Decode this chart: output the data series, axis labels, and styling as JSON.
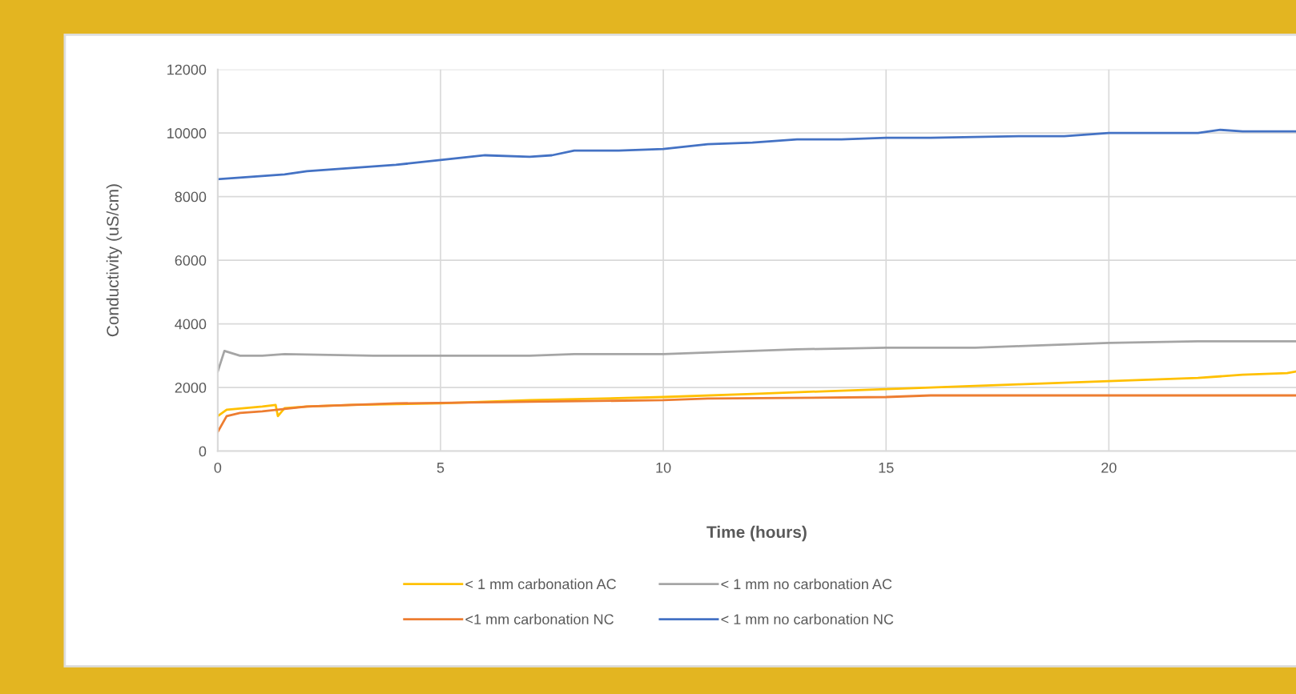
{
  "chart_data": {
    "type": "line",
    "xlabel": "Time (hours)",
    "ylabel": "Conductivity (uS/cm)",
    "xlim": [
      0,
      24.2
    ],
    "xticks": [
      0,
      5,
      10,
      15,
      20
    ],
    "ylim": [
      0,
      12000
    ],
    "yticks": [
      0,
      2000,
      4000,
      6000,
      8000,
      10000,
      12000
    ],
    "grid": true,
    "legend": "bottom",
    "marker": "none",
    "line_style": "solid",
    "series": [
      {
        "name": "< 1 mm carbonation AC",
        "color": "#ffc000",
        "x": [
          0,
          0.2,
          1,
          1.3,
          1.35,
          1.5,
          2,
          3,
          5,
          7,
          10,
          12,
          14,
          16,
          18,
          20,
          22,
          23,
          24,
          24.2
        ],
        "values": [
          1100,
          1300,
          1400,
          1450,
          1100,
          1350,
          1400,
          1450,
          1500,
          1600,
          1700,
          1800,
          1900,
          2000,
          2100,
          2200,
          2300,
          2400,
          2450,
          2500
        ]
      },
      {
        "name": "<1 mm carbonation NC",
        "color": "#ed7d31",
        "x": [
          0,
          0.2,
          0.5,
          1,
          2,
          4,
          7,
          10,
          11,
          15,
          16,
          20,
          24.2
        ],
        "values": [
          600,
          1100,
          1200,
          1250,
          1400,
          1500,
          1550,
          1600,
          1650,
          1700,
          1750,
          1750,
          1750
        ]
      },
      {
        "name": "< 1 mm no carbonation AC",
        "color": "#a5a5a5",
        "x": [
          0,
          0.15,
          0.5,
          1,
          1.5,
          3.5,
          5,
          7,
          8,
          10,
          11,
          12,
          13,
          15,
          17,
          18,
          19,
          20,
          22,
          24.2
        ],
        "values": [
          2500,
          3150,
          3000,
          3000,
          3050,
          3000,
          3000,
          3000,
          3050,
          3050,
          3100,
          3150,
          3200,
          3250,
          3250,
          3300,
          3350,
          3400,
          3450,
          3450
        ]
      },
      {
        "name": "< 1 mm no carbonation NC",
        "color": "#4472c4",
        "x": [
          0,
          0.5,
          1.5,
          2,
          3,
          4,
          5,
          6,
          7,
          7.5,
          8,
          9,
          10,
          11,
          12,
          13,
          14,
          15,
          16,
          18,
          19,
          20,
          21,
          22,
          22.5,
          23,
          24,
          24.2
        ],
        "values": [
          8550,
          8600,
          8700,
          8800,
          8900,
          9000,
          9150,
          9300,
          9250,
          9300,
          9450,
          9450,
          9500,
          9650,
          9700,
          9800,
          9800,
          9850,
          9850,
          9900,
          9900,
          10000,
          10000,
          10000,
          10100,
          10050,
          10050,
          10050
        ]
      }
    ]
  }
}
